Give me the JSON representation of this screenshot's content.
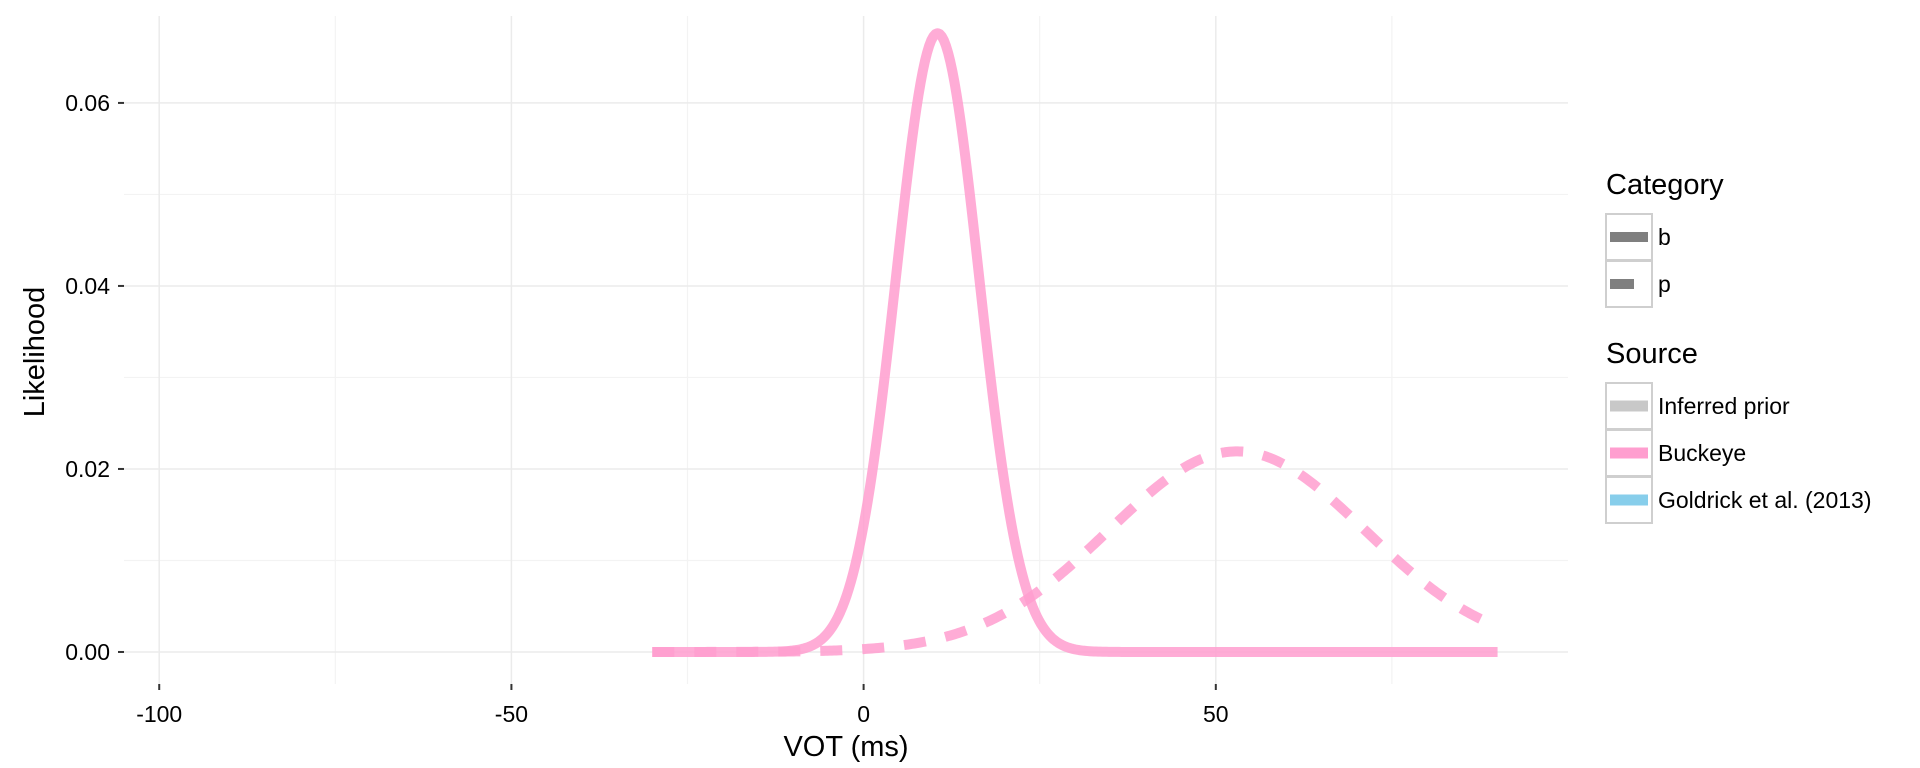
{
  "chart_data": {
    "type": "line",
    "xlabel": "VOT (ms)",
    "ylabel": "Likelihood",
    "xlim": [
      -105,
      100
    ],
    "ylim": [
      -0.0035,
      0.0695
    ],
    "x_ticks": [
      -100,
      -50,
      0,
      50
    ],
    "x_tick_labels": [
      "-100",
      "-50",
      "0",
      "50"
    ],
    "y_ticks": [
      0.0,
      0.02,
      0.04,
      0.06
    ],
    "y_tick_labels": [
      "0.00",
      "0.02",
      "0.04",
      "0.06"
    ],
    "grid": true,
    "legend_position": "right",
    "legends": [
      {
        "title": "Category",
        "entries": [
          {
            "label": "b",
            "color": "#7f7f7f",
            "linetype": "solid"
          },
          {
            "label": "p",
            "color": "#7f7f7f",
            "linetype": "dashed"
          }
        ]
      },
      {
        "title": "Source",
        "entries": [
          {
            "label": "Inferred prior",
            "color": "#c8c8c8",
            "linetype": "solid"
          },
          {
            "label": "Buckeye",
            "color": "#ff9ecf",
            "linetype": "solid"
          },
          {
            "label": "Goldrick et al. (2013)",
            "color": "#87ceeb",
            "linetype": "solid"
          }
        ]
      }
    ],
    "series": [
      {
        "category": "b",
        "source": "Buckeye",
        "color": "#ff9ecf",
        "linetype": "solid",
        "distribution": "normal",
        "mean": 10.5,
        "sd": 5.9,
        "x_range": [
          -30,
          90
        ]
      },
      {
        "category": "p",
        "source": "Buckeye",
        "color": "#ff9ecf",
        "linetype": "dashed",
        "distribution": "normal",
        "mean": 53,
        "sd": 18.2,
        "x_range": [
          -30,
          90
        ]
      }
    ]
  }
}
